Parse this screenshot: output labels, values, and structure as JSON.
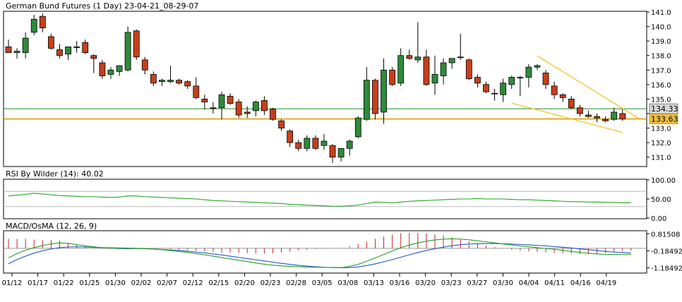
{
  "header": {
    "title": "German Bund Futures (1 Day) 23-04-21_08-29-07"
  },
  "colors": {
    "bull": "#2e8b3a",
    "bear": "#c8401a",
    "hline": "#228b22",
    "support": "#d4a000",
    "trend": "#f2c21b",
    "rsi": "#22a822",
    "macd_signal": "#2255cc",
    "macd_line": "#22a022",
    "histogram": "#cc2222",
    "tag_support_bg": "#f0c040",
    "tag_last_bg": "#d8d8d8",
    "grid": "#bbbbbb"
  },
  "chart_data": [
    {
      "type": "candlestick",
      "title": "German Bund Futures (1 Day) 23-04-21_08-29-07",
      "ylim": [
        130.4,
        141.0
      ],
      "yticks": [
        131.0,
        132.0,
        133.0,
        134.0,
        135.0,
        136.0,
        137.0,
        138.0,
        139.0,
        140.0,
        141.0
      ],
      "date_labels": [
        "01/12",
        "01/17",
        "01/22",
        "01/25",
        "01/30",
        "02/02",
        "02/07",
        "02/12",
        "02/15",
        "02/20",
        "02/23",
        "02/28",
        "03/05",
        "03/08",
        "03/13",
        "03/16",
        "03/20",
        "03/23",
        "03/27",
        "03/30",
        "04/04",
        "04/11",
        "04/16",
        "04/19"
      ],
      "horizontal_lines": [
        {
          "price": 134.33,
          "label": "134.33",
          "color": "#228b22"
        },
        {
          "price": 133.63,
          "label": "133.63",
          "color": "#d4a000"
        }
      ],
      "trendlines": [
        {
          "from": [
            62,
            137.98
          ],
          "to": [
            74,
            133.63
          ]
        },
        {
          "from": [
            59,
            134.72
          ],
          "to": [
            72,
            132.7
          ]
        }
      ],
      "candles": [
        {
          "o": 138.6,
          "h": 139.1,
          "l": 138.3,
          "c": 138.2
        },
        {
          "o": 138.2,
          "h": 138.5,
          "l": 137.8,
          "c": 138.3
        },
        {
          "o": 138.2,
          "h": 139.6,
          "l": 137.8,
          "c": 139.2
        },
        {
          "o": 139.6,
          "h": 140.8,
          "l": 139.4,
          "c": 140.5
        },
        {
          "o": 140.7,
          "h": 140.9,
          "l": 139.6,
          "c": 139.9
        },
        {
          "o": 139.3,
          "h": 139.5,
          "l": 138.4,
          "c": 138.5
        },
        {
          "o": 138.4,
          "h": 138.8,
          "l": 137.8,
          "c": 138.0
        },
        {
          "o": 138.1,
          "h": 138.6,
          "l": 137.7,
          "c": 138.6
        },
        {
          "o": 138.6,
          "h": 139.0,
          "l": 138.2,
          "c": 138.55
        },
        {
          "o": 138.9,
          "h": 139.1,
          "l": 138.1,
          "c": 138.2
        },
        {
          "o": 138.0,
          "h": 138.1,
          "l": 136.8,
          "c": 137.8
        },
        {
          "o": 137.5,
          "h": 137.7,
          "l": 136.4,
          "c": 136.6
        },
        {
          "o": 136.7,
          "h": 137.2,
          "l": 136.4,
          "c": 137.0
        },
        {
          "o": 136.9,
          "h": 137.3,
          "l": 136.6,
          "c": 137.3
        },
        {
          "o": 137.0,
          "h": 140.0,
          "l": 136.9,
          "c": 139.6
        },
        {
          "o": 139.7,
          "h": 139.8,
          "l": 137.7,
          "c": 137.9
        },
        {
          "o": 137.7,
          "h": 137.9,
          "l": 136.7,
          "c": 137.0
        },
        {
          "o": 136.7,
          "h": 136.9,
          "l": 135.9,
          "c": 136.1
        },
        {
          "o": 136.2,
          "h": 136.4,
          "l": 135.9,
          "c": 136.3
        },
        {
          "o": 136.2,
          "h": 137.3,
          "l": 136.1,
          "c": 136.3
        },
        {
          "o": 136.3,
          "h": 136.4,
          "l": 136.0,
          "c": 136.1
        },
        {
          "o": 136.2,
          "h": 136.3,
          "l": 135.7,
          "c": 135.9
        },
        {
          "o": 135.9,
          "h": 136.5,
          "l": 135.0,
          "c": 135.1
        },
        {
          "o": 135.0,
          "h": 135.3,
          "l": 134.3,
          "c": 134.8
        },
        {
          "o": 134.4,
          "h": 134.8,
          "l": 134.0,
          "c": 134.35
        },
        {
          "o": 134.4,
          "h": 135.5,
          "l": 133.6,
          "c": 135.3
        },
        {
          "o": 135.2,
          "h": 135.4,
          "l": 134.6,
          "c": 134.7
        },
        {
          "o": 134.8,
          "h": 135.0,
          "l": 133.7,
          "c": 133.9
        },
        {
          "o": 134.1,
          "h": 134.5,
          "l": 133.7,
          "c": 134.0
        },
        {
          "o": 134.2,
          "h": 134.9,
          "l": 133.8,
          "c": 134.8
        },
        {
          "o": 134.9,
          "h": 135.2,
          "l": 133.9,
          "c": 134.2
        },
        {
          "o": 134.3,
          "h": 134.4,
          "l": 133.5,
          "c": 133.6
        },
        {
          "o": 133.5,
          "h": 133.6,
          "l": 132.8,
          "c": 133.0
        },
        {
          "o": 132.8,
          "h": 132.9,
          "l": 131.7,
          "c": 132.0
        },
        {
          "o": 132.0,
          "h": 132.2,
          "l": 131.4,
          "c": 131.6
        },
        {
          "o": 131.6,
          "h": 132.5,
          "l": 131.4,
          "c": 132.3
        },
        {
          "o": 132.3,
          "h": 132.5,
          "l": 131.5,
          "c": 131.6
        },
        {
          "o": 131.8,
          "h": 132.6,
          "l": 131.5,
          "c": 132.1
        },
        {
          "o": 131.8,
          "h": 131.9,
          "l": 130.6,
          "c": 131.0
        },
        {
          "o": 131.0,
          "h": 131.6,
          "l": 130.7,
          "c": 131.6
        },
        {
          "o": 131.6,
          "h": 132.2,
          "l": 131.1,
          "c": 132.1
        },
        {
          "o": 132.4,
          "h": 133.8,
          "l": 132.3,
          "c": 133.7
        },
        {
          "o": 133.6,
          "h": 137.2,
          "l": 133.5,
          "c": 136.3
        },
        {
          "o": 136.3,
          "h": 136.4,
          "l": 133.6,
          "c": 134.0
        },
        {
          "o": 134.1,
          "h": 137.8,
          "l": 133.3,
          "c": 137.0
        },
        {
          "o": 137.0,
          "h": 137.2,
          "l": 135.9,
          "c": 136.0
        },
        {
          "o": 136.1,
          "h": 138.5,
          "l": 135.9,
          "c": 138.0
        },
        {
          "o": 138.0,
          "h": 138.4,
          "l": 137.7,
          "c": 137.8
        },
        {
          "o": 137.7,
          "h": 140.3,
          "l": 137.5,
          "c": 137.9
        },
        {
          "o": 137.9,
          "h": 138.4,
          "l": 135.9,
          "c": 136.0
        },
        {
          "o": 136.1,
          "h": 138.0,
          "l": 135.3,
          "c": 136.7
        },
        {
          "o": 136.6,
          "h": 137.8,
          "l": 136.0,
          "c": 137.5
        },
        {
          "o": 137.5,
          "h": 137.8,
          "l": 137.1,
          "c": 137.8
        },
        {
          "o": 137.9,
          "h": 139.5,
          "l": 137.7,
          "c": 137.9
        },
        {
          "o": 137.7,
          "h": 137.8,
          "l": 136.3,
          "c": 136.4
        },
        {
          "o": 136.5,
          "h": 136.7,
          "l": 135.8,
          "c": 136.1
        },
        {
          "o": 136.0,
          "h": 136.2,
          "l": 135.4,
          "c": 135.5
        },
        {
          "o": 135.4,
          "h": 135.7,
          "l": 134.9,
          "c": 135.4
        },
        {
          "o": 135.3,
          "h": 136.4,
          "l": 134.8,
          "c": 136.1
        },
        {
          "o": 136.0,
          "h": 136.6,
          "l": 135.7,
          "c": 136.5
        },
        {
          "o": 136.5,
          "h": 136.6,
          "l": 135.2,
          "c": 136.5
        },
        {
          "o": 136.5,
          "h": 137.4,
          "l": 135.8,
          "c": 137.2
        },
        {
          "o": 137.2,
          "h": 137.4,
          "l": 137.0,
          "c": 137.3
        },
        {
          "o": 136.8,
          "h": 137.0,
          "l": 135.7,
          "c": 136.0
        },
        {
          "o": 135.9,
          "h": 136.2,
          "l": 135.0,
          "c": 135.3
        },
        {
          "o": 135.3,
          "h": 135.4,
          "l": 134.8,
          "c": 135.1
        },
        {
          "o": 135.0,
          "h": 135.2,
          "l": 134.3,
          "c": 134.4
        },
        {
          "o": 134.4,
          "h": 134.6,
          "l": 133.8,
          "c": 134.0
        },
        {
          "o": 133.9,
          "h": 134.2,
          "l": 133.7,
          "c": 133.8
        },
        {
          "o": 133.8,
          "h": 134.0,
          "l": 133.4,
          "c": 133.7
        },
        {
          "o": 133.6,
          "h": 133.8,
          "l": 133.4,
          "c": 133.5
        },
        {
          "o": 133.6,
          "h": 134.4,
          "l": 133.5,
          "c": 134.1
        },
        {
          "o": 134.0,
          "h": 134.3,
          "l": 133.5,
          "c": 133.63
        }
      ]
    },
    {
      "type": "line",
      "title": "RSI By Wilder (14): 40.02",
      "ylim": [
        0,
        100
      ],
      "yticks": [
        0.0,
        50.0,
        100.0
      ],
      "ytick_labels": [
        "0.00",
        "50.00",
        "100.00"
      ],
      "levels": [
        30,
        70
      ],
      "values": [
        58,
        60,
        62,
        65,
        63,
        61,
        59,
        58,
        57,
        56,
        56,
        55,
        54,
        55,
        58,
        58,
        56,
        55,
        54,
        53,
        52,
        51,
        50,
        48,
        46,
        45,
        44,
        43,
        42,
        41,
        40,
        39,
        38,
        36,
        35,
        34,
        33,
        32,
        31,
        31,
        32,
        34,
        38,
        42,
        41,
        40,
        42,
        44,
        45,
        46,
        47,
        48,
        49,
        50,
        50,
        51,
        50,
        50,
        50,
        49,
        48,
        48,
        47,
        46,
        45,
        44,
        43,
        43,
        42,
        42,
        41,
        41,
        40,
        40
      ]
    },
    {
      "type": "line+histogram",
      "title": "MACD/OsMA (12, 26, 9)",
      "ylim": [
        -1.45,
        0.95
      ],
      "yticks": [
        -1.18492,
        -0.18492,
        0.81508
      ],
      "ytick_labels": [
        "-1.18492",
        "-0.18492",
        "0.81508"
      ],
      "zero_line": -0.04,
      "series": [
        {
          "role": "macd",
          "values": [
            -0.6,
            -0.35,
            -0.15,
            0.0,
            0.12,
            0.22,
            0.28,
            0.25,
            0.18,
            0.1,
            0.05,
            0.0,
            -0.03,
            -0.05,
            -0.06,
            -0.05,
            -0.06,
            -0.08,
            -0.12,
            -0.17,
            -0.22,
            -0.28,
            -0.35,
            -0.42,
            -0.5,
            -0.58,
            -0.66,
            -0.74,
            -0.82,
            -0.9,
            -0.97,
            -1.03,
            -1.07,
            -1.1,
            -1.12,
            -1.14,
            -1.15,
            -1.16,
            -1.17,
            -1.17,
            -1.1,
            -0.98,
            -0.8,
            -0.6,
            -0.4,
            -0.2,
            0.0,
            0.15,
            0.28,
            0.38,
            0.45,
            0.5,
            0.52,
            0.5,
            0.46,
            0.4,
            0.34,
            0.28,
            0.22,
            0.16,
            0.1,
            0.05,
            0.0,
            -0.05,
            -0.1,
            -0.16,
            -0.22,
            -0.28,
            -0.33,
            -0.37,
            -0.4,
            -0.4,
            -0.4,
            -0.4
          ]
        },
        {
          "role": "signal",
          "values": [
            -0.95,
            -0.7,
            -0.5,
            -0.32,
            -0.18,
            -0.08,
            0.0,
            0.04,
            0.05,
            0.04,
            0.02,
            0.0,
            -0.01,
            -0.02,
            -0.03,
            -0.04,
            -0.06,
            -0.08,
            -0.11,
            -0.14,
            -0.17,
            -0.21,
            -0.26,
            -0.31,
            -0.37,
            -0.43,
            -0.5,
            -0.57,
            -0.64,
            -0.71,
            -0.78,
            -0.85,
            -0.92,
            -0.98,
            -1.04,
            -1.08,
            -1.12,
            -1.15,
            -1.17,
            -1.18,
            -1.17,
            -1.13,
            -1.05,
            -0.95,
            -0.83,
            -0.7,
            -0.56,
            -0.42,
            -0.29,
            -0.17,
            -0.06,
            0.03,
            0.11,
            0.17,
            0.21,
            0.23,
            0.24,
            0.24,
            0.23,
            0.21,
            0.19,
            0.16,
            0.13,
            0.1,
            0.06,
            0.02,
            -0.02,
            -0.07,
            -0.12,
            -0.17,
            -0.22,
            -0.26,
            -0.29,
            -0.32
          ]
        }
      ]
    }
  ]
}
